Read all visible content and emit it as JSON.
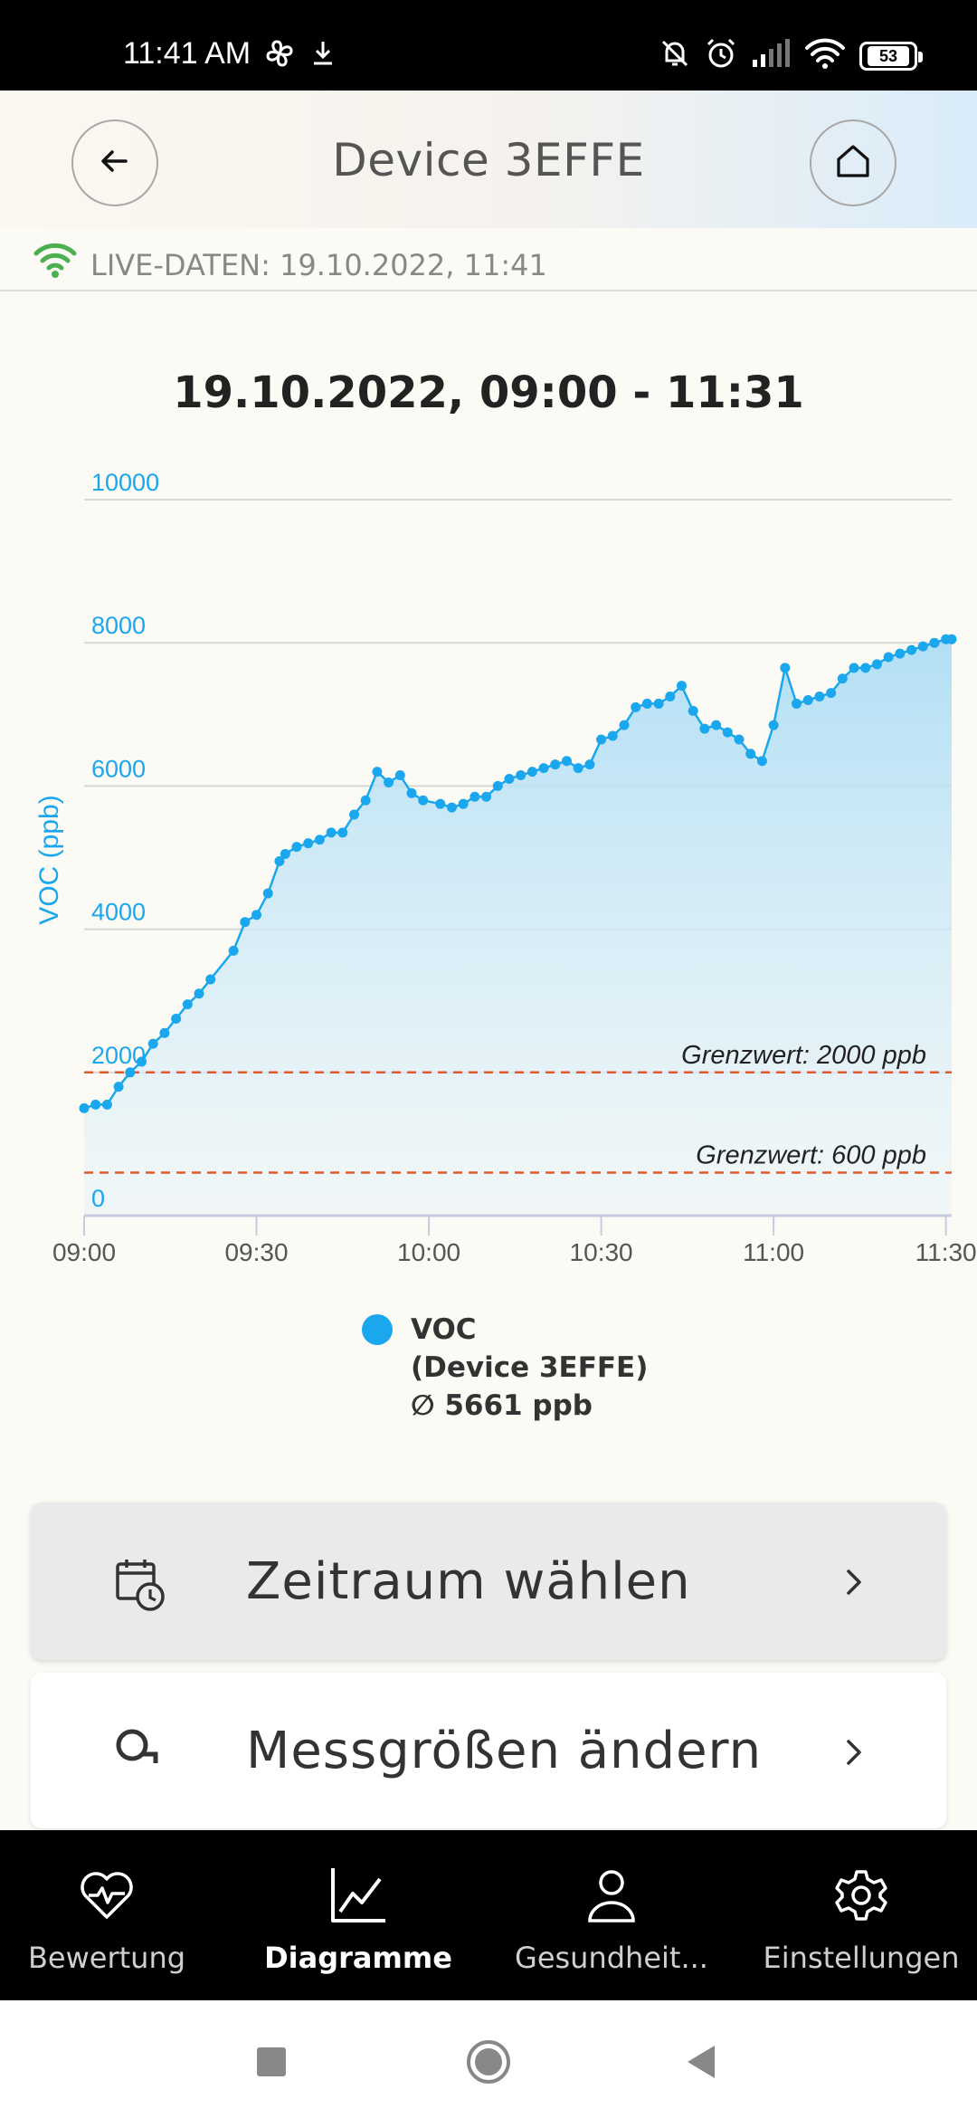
{
  "status_bar": {
    "time": "11:41 AM",
    "battery": "53",
    "icons": [
      "fan-icon",
      "download-icon",
      "bell-off-icon",
      "alarm-icon",
      "signal-icon",
      "wifi-icon",
      "battery-icon"
    ]
  },
  "header": {
    "title": "Device 3EFFE",
    "back_icon": "arrow-left-icon",
    "home_icon": "home-icon"
  },
  "live": {
    "text": "LIVE-DATEN: 19.10.2022, 11:41",
    "icon": "wifi-icon",
    "icon_color": "#4caf50"
  },
  "chart_title": "19.10.2022, 09:00 - 11:31",
  "chart_data": {
    "type": "area",
    "title": "19.10.2022, 09:00 - 11:31",
    "ylabel": "VOC (ppb)",
    "xlabel": "",
    "ylim": [
      0,
      10000
    ],
    "y_ticks": [
      0,
      2000,
      4000,
      6000,
      8000,
      10000
    ],
    "x_tick_labels": [
      "09:00",
      "09:30",
      "10:00",
      "10:30",
      "11:00",
      "11:30"
    ],
    "x_tick_minutes": [
      0,
      30,
      60,
      90,
      120,
      150
    ],
    "xlim_minutes": [
      0,
      151
    ],
    "grid": true,
    "color": "#1aa7ee",
    "series": [
      {
        "name": "VOC",
        "x_minutes": [
          0,
          2,
          4,
          6,
          8,
          10,
          12,
          14,
          16,
          18,
          20,
          22,
          26,
          28,
          30,
          32,
          34,
          35,
          37,
          39,
          41,
          43,
          45,
          47,
          49,
          51,
          53,
          55,
          57,
          59,
          62,
          64,
          66,
          68,
          70,
          72,
          74,
          76,
          78,
          80,
          82,
          84,
          86,
          88,
          90,
          92,
          94,
          96,
          98,
          100,
          102,
          104,
          106,
          108,
          110,
          112,
          114,
          116,
          118,
          120,
          122,
          124,
          126,
          128,
          130,
          132,
          134,
          136,
          138,
          140,
          142,
          144,
          146,
          148,
          150,
          151
        ],
        "values": [
          1500,
          1550,
          1550,
          1800,
          2000,
          2150,
          2400,
          2550,
          2750,
          2950,
          3100,
          3300,
          3700,
          4100,
          4200,
          4500,
          4950,
          5050,
          5150,
          5200,
          5250,
          5350,
          5350,
          5600,
          5800,
          6200,
          6050,
          6150,
          5900,
          5800,
          5750,
          5700,
          5750,
          5850,
          5850,
          6000,
          6100,
          6150,
          6200,
          6250,
          6300,
          6350,
          6250,
          6300,
          6650,
          6700,
          6850,
          7100,
          7150,
          7150,
          7250,
          7400,
          7050,
          6800,
          6850,
          6750,
          6650,
          6450,
          6350,
          6850,
          7650,
          7150,
          7200,
          7250,
          7300,
          7500,
          7650,
          7650,
          7700,
          7800,
          7850,
          7900,
          7950,
          8000,
          8050,
          8050
        ]
      }
    ],
    "thresholds": [
      {
        "value": 2000,
        "label": "Grenzwert: 2000 ppb",
        "color": "#e05a2b"
      },
      {
        "value": 600,
        "label": "Grenzwert: 600 ppb",
        "color": "#e05a2b"
      }
    ]
  },
  "legend": {
    "name": "VOC",
    "device": "(Device 3EFFE)",
    "average": "∅ 5661 ppb"
  },
  "cards": {
    "time_range": {
      "label": "Zeitraum wählen",
      "icon": "calendar-clock-icon"
    },
    "metrics": {
      "label": "Messgrößen ändern",
      "icon": "search-sensor-icon"
    }
  },
  "nav": {
    "items": [
      {
        "label": "Bewertung",
        "icon": "heart-pulse-icon",
        "active": false
      },
      {
        "label": "Diagramme",
        "icon": "chart-line-icon",
        "active": true
      },
      {
        "label": "Gesundheit...",
        "icon": "person-icon",
        "active": false
      },
      {
        "label": "Einstellungen",
        "icon": "gear-icon",
        "active": false
      }
    ]
  },
  "system_nav": [
    "recent-apps-icon",
    "home-circle-icon",
    "back-triangle-icon"
  ]
}
